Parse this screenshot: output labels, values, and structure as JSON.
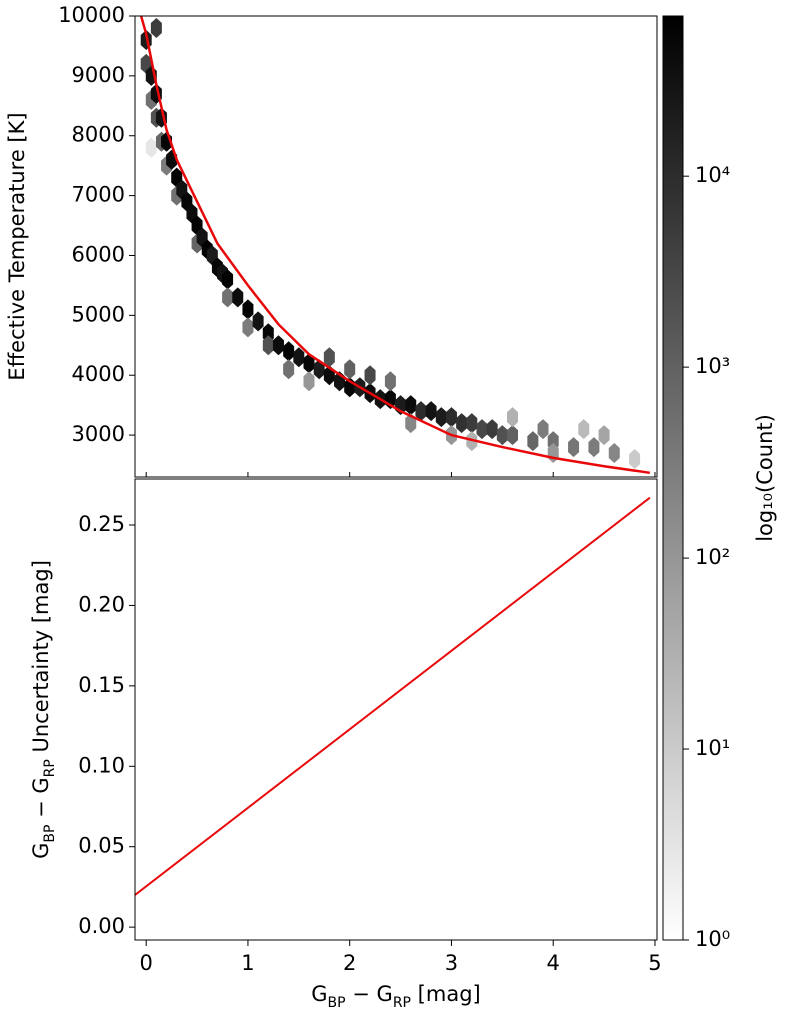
{
  "chart_data": [
    {
      "type": "hexbin",
      "ylabel": "Effective Temperature [K]",
      "xlim": [
        -0.11,
        5.02
      ],
      "ylim": [
        2300,
        10000
      ],
      "yticks": [
        3000,
        4000,
        5000,
        6000,
        7000,
        8000,
        9000,
        10000
      ],
      "hexbin": {
        "x": [
          0.0,
          0.0,
          0.05,
          0.05,
          0.1,
          0.1,
          0.05,
          0.15,
          0.15,
          0.2,
          0.2,
          0.25,
          0.3,
          0.3,
          0.35,
          0.4,
          0.45,
          0.5,
          0.5,
          0.55,
          0.6,
          0.65,
          0.7,
          0.75,
          0.8,
          0.8,
          0.9,
          1.0,
          1.0,
          1.1,
          1.2,
          1.2,
          1.3,
          1.4,
          1.4,
          1.5,
          1.6,
          1.6,
          1.7,
          1.8,
          1.8,
          1.9,
          2.0,
          2.0,
          2.1,
          2.2,
          2.2,
          2.3,
          2.4,
          2.4,
          2.5,
          2.6,
          2.6,
          2.7,
          2.8,
          2.9,
          3.0,
          3.0,
          3.1,
          3.2,
          3.3,
          3.4,
          3.5,
          3.6,
          3.6,
          3.8,
          4.0,
          4.0,
          4.2,
          4.4,
          4.6,
          4.8,
          4.3,
          3.2,
          0.1,
          3.9,
          4.5
        ],
        "y": [
          9600,
          9200,
          9000,
          8600,
          8700,
          8300,
          7800,
          8300,
          7900,
          7900,
          7500,
          7600,
          7300,
          7000,
          7100,
          6900,
          6700,
          6500,
          6200,
          6300,
          6100,
          6000,
          5800,
          5700,
          5600,
          5300,
          5300,
          5100,
          4800,
          4900,
          4700,
          4500,
          4500,
          4400,
          4100,
          4300,
          4200,
          3900,
          4100,
          4000,
          4300,
          3900,
          3800,
          4100,
          3800,
          3700,
          4000,
          3600,
          3600,
          3900,
          3500,
          3500,
          3200,
          3400,
          3400,
          3300,
          3300,
          3000,
          3200,
          3200,
          3100,
          3100,
          3000,
          3000,
          3300,
          2900,
          2900,
          2700,
          2800,
          2800,
          2700,
          2600,
          3100,
          2900,
          9800,
          3100,
          3000
        ],
        "counts": [
          20000,
          3000,
          30000,
          500,
          40000,
          2000,
          3,
          30000,
          800,
          50000,
          300,
          40000,
          60000,
          500,
          30000,
          50000,
          40000,
          60000,
          800,
          30000,
          60000,
          20000,
          50000,
          30000,
          60000,
          500,
          40000,
          60000,
          300,
          30000,
          50000,
          2000,
          40000,
          60000,
          500,
          30000,
          50000,
          100,
          20000,
          40000,
          2000,
          30000,
          50000,
          1000,
          20000,
          40000,
          3000,
          30000,
          50000,
          500,
          20000,
          40000,
          200,
          10000,
          30000,
          20000,
          10000,
          100,
          8000,
          5000,
          3000,
          5000,
          2000,
          1000,
          30,
          800,
          500,
          100,
          400,
          300,
          200,
          10,
          20,
          30,
          5000,
          300,
          50
        ]
      },
      "curve": {
        "color": "#e8080a",
        "x": [
          -0.05,
          0,
          0.1,
          0.2,
          0.3,
          0.5,
          0.7,
          1,
          1.3,
          1.6,
          2,
          2.5,
          3,
          3.5,
          4,
          4.5,
          4.95
        ],
        "y": [
          10000,
          9700,
          8850,
          8100,
          7600,
          6900,
          6200,
          5500,
          4850,
          4350,
          3900,
          3400,
          3000,
          2800,
          2620,
          2480,
          2370
        ]
      },
      "colorbar": {
        "label": "log₁₀(Count)",
        "scale": "log",
        "lim": [
          1,
          69000
        ],
        "colors": [
          "#ffffff",
          "#000000"
        ],
        "ticks": [
          {
            "value": 1,
            "label": "10⁰"
          },
          {
            "value": 10,
            "label": "10¹"
          },
          {
            "value": 100,
            "label": "10²"
          },
          {
            "value": 1000,
            "label": "10³"
          },
          {
            "value": 10000,
            "label": "10⁴"
          }
        ]
      }
    },
    {
      "type": "line",
      "xlabel": [
        {
          "text": "G"
        },
        {
          "text": "BP",
          "sub": true
        },
        {
          "text": " − G"
        },
        {
          "text": "RP",
          "sub": true
        },
        {
          "text": " [mag]"
        }
      ],
      "ylabel": [
        {
          "text": "G"
        },
        {
          "text": "BP",
          "sub": true
        },
        {
          "text": " − G"
        },
        {
          "text": "RP",
          "sub": true
        },
        {
          "text": " Uncertainty [mag]"
        }
      ],
      "xlim": [
        -0.11,
        5.02
      ],
      "ylim": [
        -0.008,
        0.2786
      ],
      "xticks": [
        0,
        1,
        2,
        3,
        4,
        5
      ],
      "yticks": [
        {
          "value": 0,
          "label": "0.00"
        },
        0.05,
        {
          "value": 0.1,
          "label": "0.10"
        },
        0.15,
        {
          "value": 0.2,
          "label": "0.20"
        },
        0.25
      ],
      "series": [
        {
          "color": "#e8080a",
          "x": [
            -0.11,
            4.95
          ],
          "values": [
            0.02,
            0.267
          ]
        }
      ]
    }
  ]
}
